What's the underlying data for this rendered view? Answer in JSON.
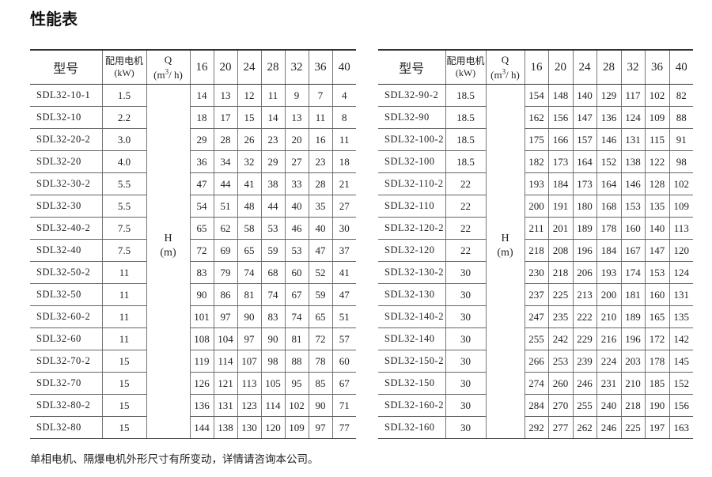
{
  "title": "性能表",
  "header": {
    "model": "型号",
    "power_cn": "配用电机",
    "power_unit": "(kW)",
    "q": "Q",
    "q_unit_pre": "(m",
    "q_unit_sup": "3",
    "q_unit_post": "/ h)",
    "flows": [
      "16",
      "20",
      "24",
      "28",
      "32",
      "36",
      "40"
    ],
    "h": "H",
    "h_unit": "(m)"
  },
  "left_table": [
    {
      "model": "SDL32-10-1",
      "power": "1.5",
      "values": [
        "14",
        "13",
        "12",
        "11",
        "9",
        "7",
        "4"
      ]
    },
    {
      "model": "SDL32-10",
      "power": "2.2",
      "values": [
        "18",
        "17",
        "15",
        "14",
        "13",
        "11",
        "8"
      ]
    },
    {
      "model": "SDL32-20-2",
      "power": "3.0",
      "values": [
        "29",
        "28",
        "26",
        "23",
        "20",
        "16",
        "11"
      ]
    },
    {
      "model": "SDL32-20",
      "power": "4.0",
      "values": [
        "36",
        "34",
        "32",
        "29",
        "27",
        "23",
        "18"
      ]
    },
    {
      "model": "SDL32-30-2",
      "power": "5.5",
      "values": [
        "47",
        "44",
        "41",
        "38",
        "33",
        "28",
        "21"
      ]
    },
    {
      "model": "SDL32-30",
      "power": "5.5",
      "values": [
        "54",
        "51",
        "48",
        "44",
        "40",
        "35",
        "27"
      ]
    },
    {
      "model": "SDL32-40-2",
      "power": "7.5",
      "values": [
        "65",
        "62",
        "58",
        "53",
        "46",
        "40",
        "30"
      ]
    },
    {
      "model": "SDL32-40",
      "power": "7.5",
      "values": [
        "72",
        "69",
        "65",
        "59",
        "53",
        "47",
        "37"
      ]
    },
    {
      "model": "SDL32-50-2",
      "power": "11",
      "values": [
        "83",
        "79",
        "74",
        "68",
        "60",
        "52",
        "41"
      ]
    },
    {
      "model": "SDL32-50",
      "power": "11",
      "values": [
        "90",
        "86",
        "81",
        "74",
        "67",
        "59",
        "47"
      ]
    },
    {
      "model": "SDL32-60-2",
      "power": "11",
      "values": [
        "101",
        "97",
        "90",
        "83",
        "74",
        "65",
        "51"
      ]
    },
    {
      "model": "SDL32-60",
      "power": "11",
      "values": [
        "108",
        "104",
        "97",
        "90",
        "81",
        "72",
        "57"
      ]
    },
    {
      "model": "SDL32-70-2",
      "power": "15",
      "values": [
        "119",
        "114",
        "107",
        "98",
        "88",
        "78",
        "60"
      ]
    },
    {
      "model": "SDL32-70",
      "power": "15",
      "values": [
        "126",
        "121",
        "113",
        "105",
        "95",
        "85",
        "67"
      ]
    },
    {
      "model": "SDL32-80-2",
      "power": "15",
      "values": [
        "136",
        "131",
        "123",
        "114",
        "102",
        "90",
        "71"
      ]
    },
    {
      "model": "SDL32-80",
      "power": "15",
      "values": [
        "144",
        "138",
        "130",
        "120",
        "109",
        "97",
        "77"
      ]
    }
  ],
  "right_table": [
    {
      "model": "SDL32-90-2",
      "power": "18.5",
      "values": [
        "154",
        "148",
        "140",
        "129",
        "117",
        "102",
        "82"
      ]
    },
    {
      "model": "SDL32-90",
      "power": "18.5",
      "values": [
        "162",
        "156",
        "147",
        "136",
        "124",
        "109",
        "88"
      ]
    },
    {
      "model": "SDL32-100-2",
      "power": "18.5",
      "values": [
        "175",
        "166",
        "157",
        "146",
        "131",
        "115",
        "91"
      ]
    },
    {
      "model": "SDL32-100",
      "power": "18.5",
      "values": [
        "182",
        "173",
        "164",
        "152",
        "138",
        "122",
        "98"
      ]
    },
    {
      "model": "SDL32-110-2",
      "power": "22",
      "values": [
        "193",
        "184",
        "173",
        "164",
        "146",
        "128",
        "102"
      ]
    },
    {
      "model": "SDL32-110",
      "power": "22",
      "values": [
        "200",
        "191",
        "180",
        "168",
        "153",
        "135",
        "109"
      ]
    },
    {
      "model": "SDL32-120-2",
      "power": "22",
      "values": [
        "211",
        "201",
        "189",
        "178",
        "160",
        "140",
        "113"
      ]
    },
    {
      "model": "SDL32-120",
      "power": "22",
      "values": [
        "218",
        "208",
        "196",
        "184",
        "167",
        "147",
        "120"
      ]
    },
    {
      "model": "SDL32-130-2",
      "power": "30",
      "values": [
        "230",
        "218",
        "206",
        "193",
        "174",
        "153",
        "124"
      ]
    },
    {
      "model": "SDL32-130",
      "power": "30",
      "values": [
        "237",
        "225",
        "213",
        "200",
        "181",
        "160",
        "131"
      ]
    },
    {
      "model": "SDL32-140-2",
      "power": "30",
      "values": [
        "247",
        "235",
        "222",
        "210",
        "189",
        "165",
        "135"
      ]
    },
    {
      "model": "SDL32-140",
      "power": "30",
      "values": [
        "255",
        "242",
        "229",
        "216",
        "196",
        "172",
        "142"
      ]
    },
    {
      "model": "SDL32-150-2",
      "power": "30",
      "values": [
        "266",
        "253",
        "239",
        "224",
        "203",
        "178",
        "145"
      ]
    },
    {
      "model": "SDL32-150",
      "power": "30",
      "values": [
        "274",
        "260",
        "246",
        "231",
        "210",
        "185",
        "152"
      ]
    },
    {
      "model": "SDL32-160-2",
      "power": "30",
      "values": [
        "284",
        "270",
        "255",
        "240",
        "218",
        "190",
        "156"
      ]
    },
    {
      "model": "SDL32-160",
      "power": "30",
      "values": [
        "292",
        "277",
        "262",
        "246",
        "225",
        "197",
        "163"
      ]
    }
  ],
  "note": "单相电机、隔爆电机外形尺寸有所变动，详情请咨询本公司。"
}
